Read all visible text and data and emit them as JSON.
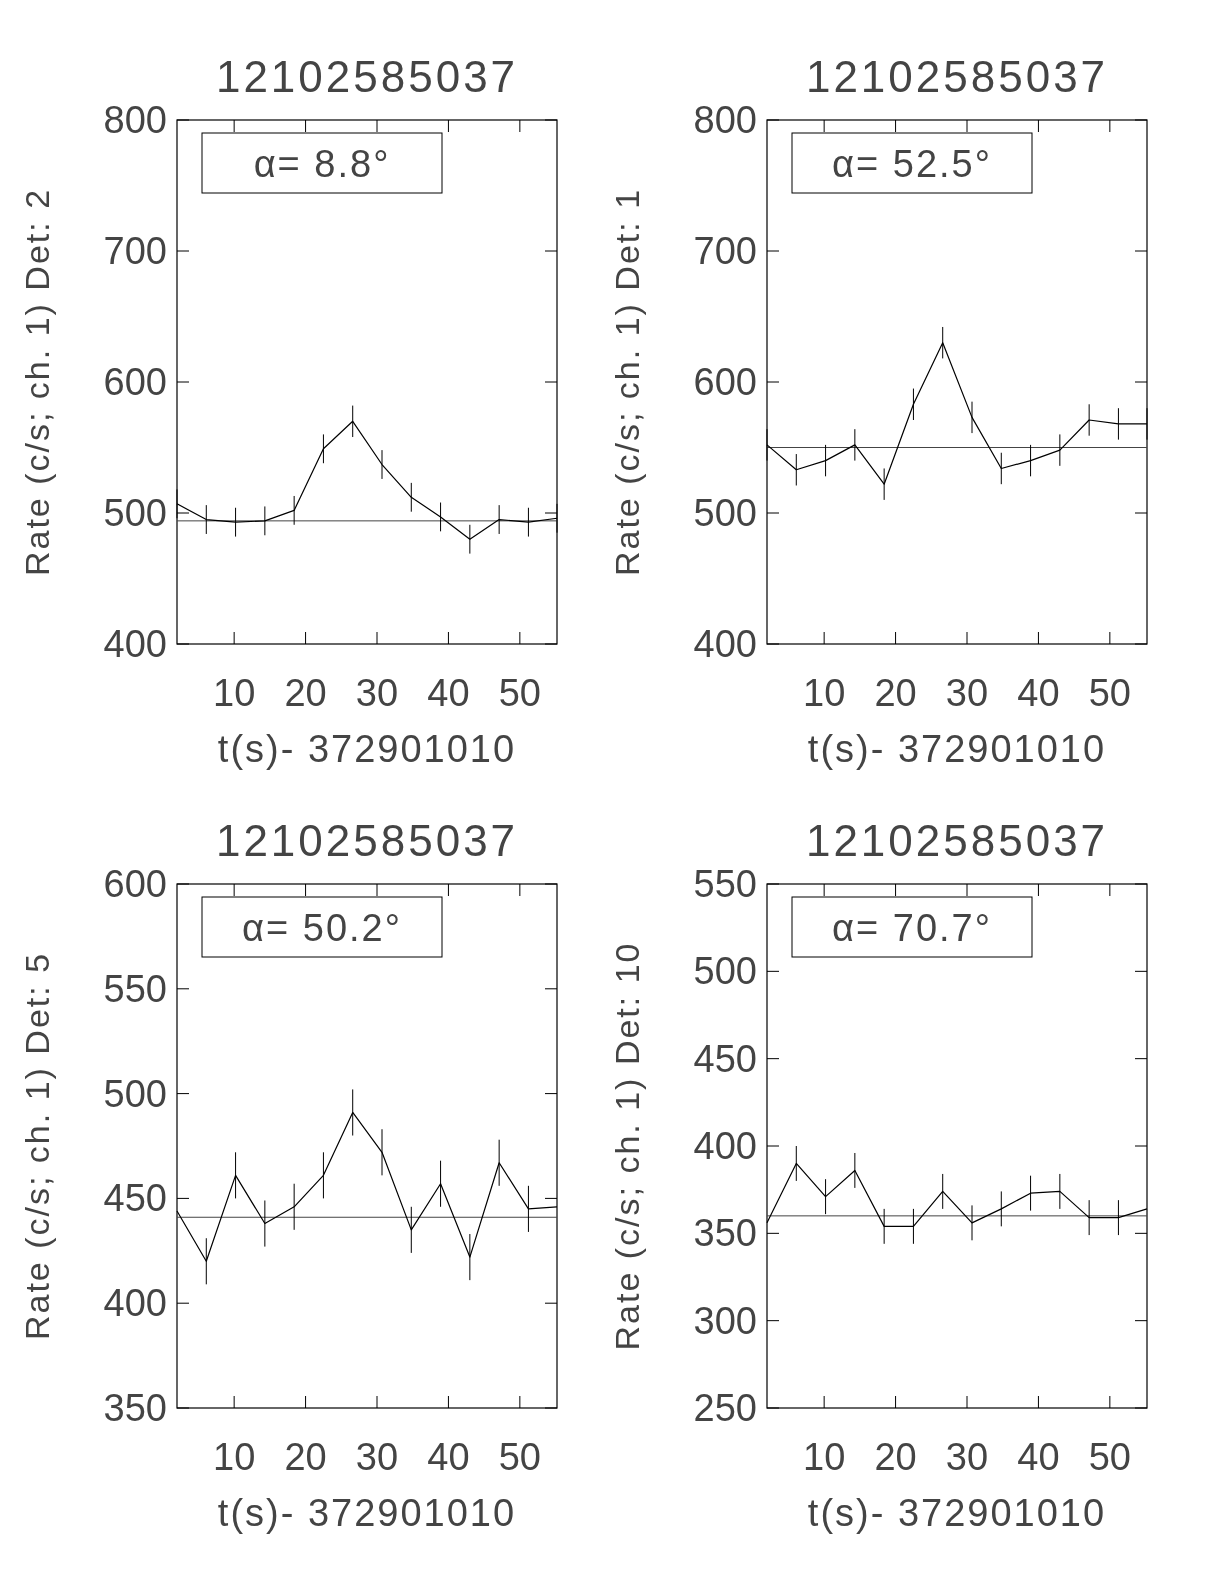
{
  "chart_data": [
    {
      "type": "line",
      "title": "12102585037",
      "xlabel": "t(s)- 372901010",
      "ylabel": "Rate (c/s; ch. 1) Det: 2",
      "annotations": [
        "α= 8.8°"
      ],
      "xlim": [
        2,
        55.2
      ],
      "xticks": [
        10,
        20,
        30,
        40,
        50
      ],
      "ylim": [
        400,
        800
      ],
      "yticks": [
        400,
        500,
        600,
        700,
        800
      ],
      "x": [
        2.0,
        6.1,
        10.2,
        14.3,
        18.4,
        22.5,
        26.6,
        30.7,
        34.8,
        38.9,
        43.0,
        47.1,
        51.2,
        55.2
      ],
      "series": [
        {
          "color": "#000000",
          "values": [
            507,
            495,
            493,
            494,
            502,
            549,
            570,
            537,
            512,
            497,
            480,
            495,
            493,
            496
          ],
          "errors": [
            11,
            11,
            11,
            11,
            11,
            11,
            12,
            11,
            11,
            11,
            11,
            11,
            11,
            11
          ]
        }
      ],
      "ref_lines": [
        {
          "axis": "y",
          "value": 494,
          "color": "#444444"
        }
      ]
    },
    {
      "type": "line",
      "title": "12102585037",
      "xlabel": "t(s)- 372901010",
      "ylabel": "Rate (c/s; ch. 1) Det: 1",
      "annotations": [
        "α= 52.5°"
      ],
      "xlim": [
        2,
        55.2
      ],
      "xticks": [
        10,
        20,
        30,
        40,
        50
      ],
      "ylim": [
        400,
        800
      ],
      "yticks": [
        400,
        500,
        600,
        700,
        800
      ],
      "x": [
        2.0,
        6.1,
        10.2,
        14.3,
        18.4,
        22.5,
        26.6,
        30.7,
        34.8,
        38.9,
        43.0,
        47.1,
        51.2,
        55.2
      ],
      "series": [
        {
          "color": "#000000",
          "values": [
            552,
            533,
            540,
            552,
            522,
            583,
            630,
            573,
            534,
            540,
            548,
            571,
            568,
            568
          ],
          "errors": [
            12,
            12,
            12,
            12,
            12,
            12,
            12,
            12,
            12,
            12,
            12,
            12,
            12,
            12
          ]
        }
      ],
      "ref_lines": [
        {
          "axis": "y",
          "value": 550,
          "color": "#444444"
        }
      ]
    },
    {
      "type": "line",
      "title": "12102585037",
      "xlabel": "t(s)- 372901010",
      "ylabel": "Rate (c/s; ch. 1) Det: 5",
      "annotations": [
        "α= 50.2°"
      ],
      "xlim": [
        2,
        55.2
      ],
      "xticks": [
        10,
        20,
        30,
        40,
        50
      ],
      "ylim": [
        350,
        600
      ],
      "yticks": [
        350,
        400,
        450,
        500,
        550,
        600
      ],
      "x": [
        2.0,
        6.1,
        10.2,
        14.3,
        18.4,
        22.5,
        26.6,
        30.7,
        34.8,
        38.9,
        43.0,
        47.1,
        51.2,
        55.2
      ],
      "series": [
        {
          "color": "#000000",
          "values": [
            444,
            420,
            461,
            438,
            446,
            461,
            491,
            472,
            435,
            457,
            422,
            467,
            445,
            446
          ],
          "errors": [
            null,
            11,
            11,
            11,
            11,
            11,
            11,
            11,
            11,
            11,
            11,
            11,
            11,
            null
          ]
        }
      ],
      "ref_lines": [
        {
          "axis": "y",
          "value": 441,
          "color": "#444444"
        }
      ]
    },
    {
      "type": "line",
      "title": "12102585037",
      "xlabel": "t(s)- 372901010",
      "ylabel": "Rate (c/s; ch. 1) Det: 10",
      "annotations": [
        "α= 70.7°"
      ],
      "xlim": [
        2,
        55.2
      ],
      "xticks": [
        10,
        20,
        30,
        40,
        50
      ],
      "ylim": [
        250,
        550
      ],
      "yticks": [
        250,
        300,
        350,
        400,
        450,
        500,
        550
      ],
      "x": [
        2.0,
        6.1,
        10.2,
        14.3,
        18.4,
        22.5,
        26.6,
        30.7,
        34.8,
        38.9,
        43.0,
        47.1,
        51.2,
        55.2
      ],
      "series": [
        {
          "color": "#000000",
          "values": [
            356,
            390,
            371,
            386,
            354,
            354,
            374,
            356,
            364,
            373,
            374,
            359,
            359,
            364
          ],
          "errors": [
            null,
            10,
            10,
            10,
            10,
            10,
            10,
            10,
            10,
            10,
            10,
            10,
            10,
            null
          ]
        }
      ],
      "ref_lines": [
        {
          "axis": "y",
          "value": 360,
          "color": "#444444"
        }
      ]
    }
  ]
}
